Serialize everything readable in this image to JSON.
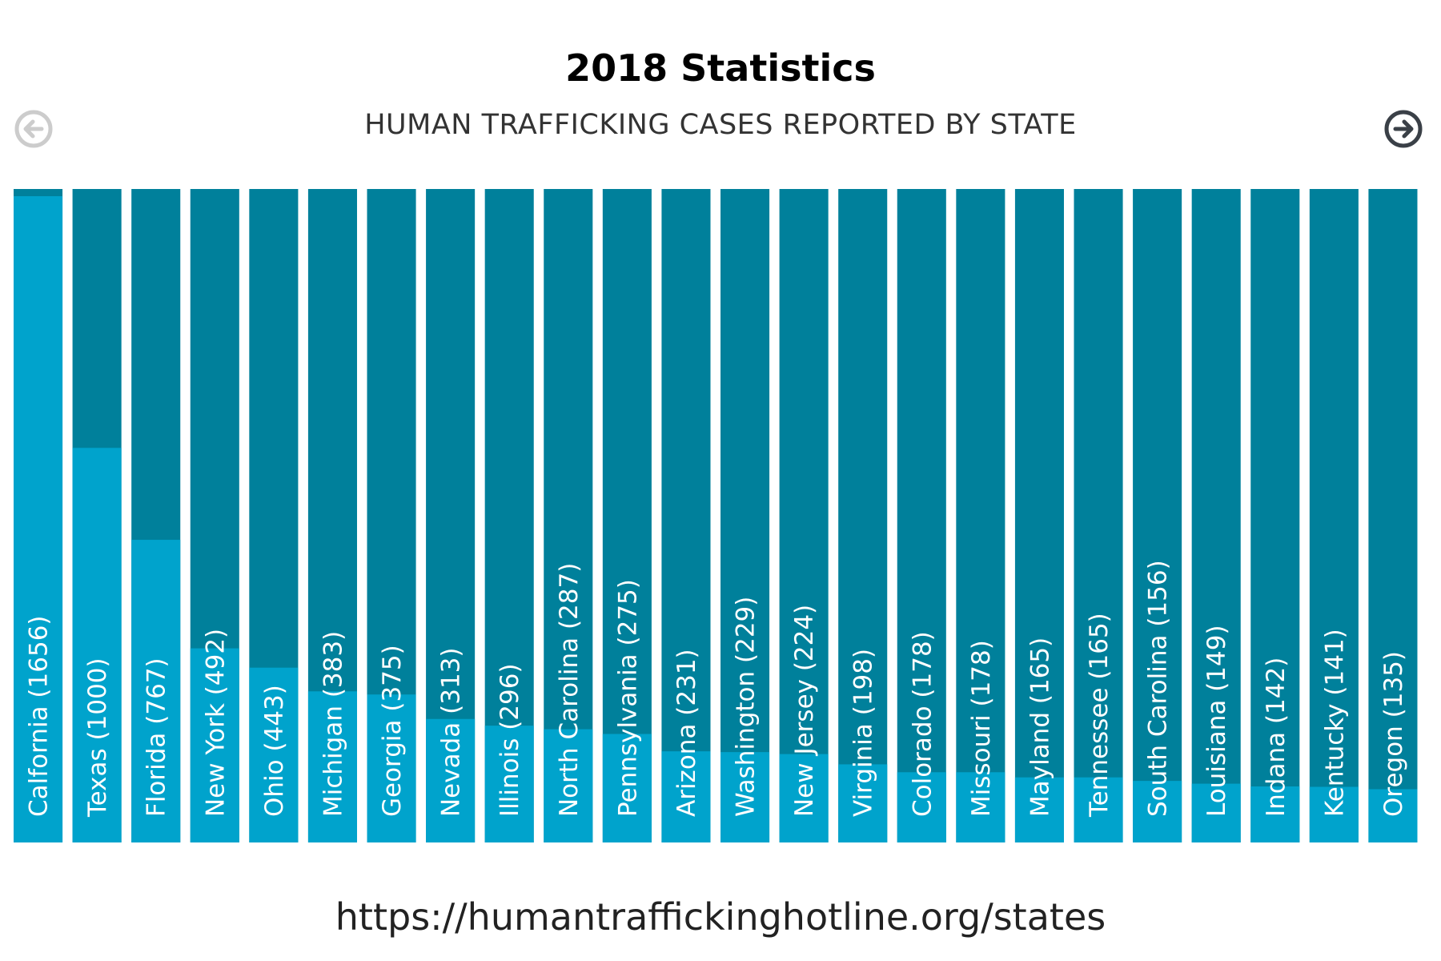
{
  "header": {
    "title": "2018 Statistics",
    "prev_icon": "arrow-left-circle-icon",
    "next_icon": "arrow-right-circle-icon"
  },
  "footer": {
    "source_url": "https://humantraffickinghotline.org/states"
  },
  "colors": {
    "bar_fill": "#00A3CC",
    "bar_background": "#00809B",
    "label": "#FFFFFF",
    "prev_icon": "#CCCCCC",
    "next_icon": "#3A4047"
  },
  "chart_data": {
    "type": "bar",
    "title": "HUMAN TRAFFICKING CASES REPORTED BY STATE",
    "xlabel": "",
    "ylabel": "",
    "ylim": [
      0,
      1656
    ],
    "grid": false,
    "categories": [
      "Calfornia",
      "Texas",
      "Florida",
      "New York",
      "Ohio",
      "Michigan",
      "Georgia",
      "Nevada",
      "Illinois",
      "North Carolina",
      "Pennsylvania",
      "Arizona",
      "Washington",
      "New Jersey",
      "Virginia",
      "Colorado",
      "Missouri",
      "Mayland",
      "Tennessee",
      "South Carolina",
      "Louisiana",
      "Indana",
      "Kentucky",
      "Oregon"
    ],
    "values": [
      1656,
      1000,
      767,
      492,
      443,
      383,
      375,
      313,
      296,
      287,
      275,
      231,
      229,
      224,
      198,
      178,
      178,
      165,
      165,
      156,
      149,
      142,
      141,
      135
    ],
    "labels": [
      "Calfornia (1656)",
      "Texas (1000)",
      "Florida (767)",
      "New York (492)",
      "Ohio (443)",
      "Michigan (383)",
      "Georgia (375)",
      "Nevada (313)",
      "Illinois (296)",
      "North Carolina (287)",
      "Pennsylvania (275)",
      "Arizona (231)",
      "Washington (229)",
      "New Jersey (224)",
      "Virginia (198)",
      "Colorado (178)",
      "Missouri (178)",
      "Mayland (165)",
      "Tennessee (165)",
      "South Carolina (156)",
      "Louisiana (149)",
      "Indana (142)",
      "Kentucky (141)",
      "Oregon (135)"
    ]
  }
}
